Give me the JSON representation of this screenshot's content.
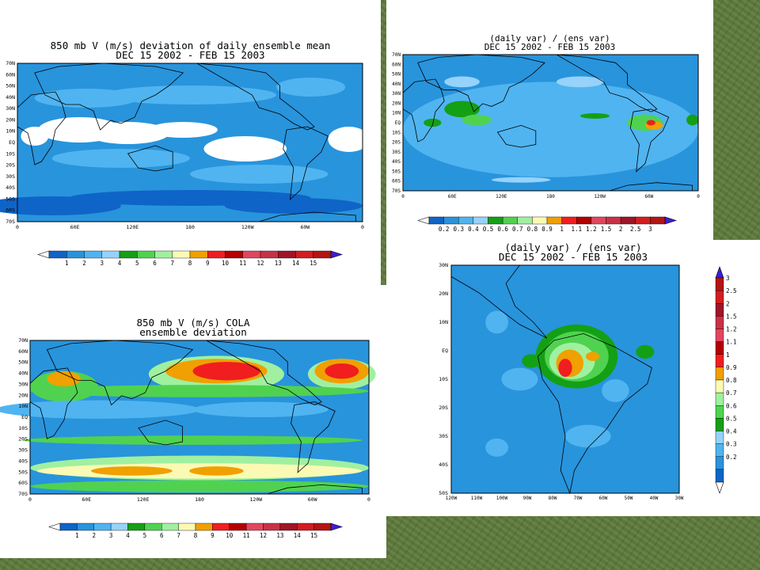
{
  "background": {
    "color": "#5b7838"
  },
  "panels": {
    "p1": {
      "title1": "850 mb V (m/s) deviation of daily ensemble mean",
      "title2": "DEC 15 2002 - FEB 15 2003"
    },
    "p2": {
      "title1": "(daily var) / (ens var)",
      "title2": "DEC 15 2002 - FEB 15 2003"
    },
    "p3": {
      "title1": "850 mb V (m/s) COLA",
      "title2": "ensemble deviation"
    },
    "p4": {
      "title1": "(daily var) / (ens var)",
      "title2": "DEC 15 2002 - FEB 15 2003"
    }
  },
  "global_lat_ticks": [
    "70N",
    "60N",
    "50N",
    "40N",
    "30N",
    "20N",
    "10N",
    "EQ",
    "10S",
    "20S",
    "30S",
    "40S",
    "50S",
    "60S",
    "70S"
  ],
  "global_lon_ticks": [
    "0",
    "60E",
    "120E",
    "180",
    "120W",
    "60W",
    "0"
  ],
  "regional_lat_ticks": [
    "30N",
    "20N",
    "10N",
    "EQ",
    "10S",
    "20S",
    "30S",
    "40S",
    "50S"
  ],
  "regional_lon_ticks": [
    "120W",
    "110W",
    "100W",
    "90W",
    "80W",
    "70W",
    "60W",
    "50W",
    "40W",
    "30W"
  ],
  "colorbar_wind": {
    "labels": [
      "1",
      "2",
      "3",
      "4",
      "5",
      "6",
      "7",
      "8",
      "9",
      "10",
      "11",
      "12",
      "13",
      "14",
      "15"
    ],
    "colors": [
      "#0f64c8",
      "#2894dc",
      "#50b4f0",
      "#96d2fa",
      "#14a014",
      "#50d250",
      "#a0f0a0",
      "#fafab4",
      "#f0a000",
      "#f01e1e",
      "#b40000",
      "#e14660",
      "#c83246",
      "#a01428",
      "#d21e1e",
      "#b41414"
    ]
  },
  "colorbar_ratio": {
    "labels": [
      "0.2",
      "0.3",
      "0.4",
      "0.5",
      "0.6",
      "0.7",
      "0.8",
      "0.9",
      "1",
      "1.1",
      "1.2",
      "1.5",
      "2",
      "2.5",
      "3"
    ],
    "colors": [
      "#0f64c8",
      "#2894dc",
      "#50b4f0",
      "#96d2fa",
      "#14a014",
      "#50d250",
      "#a0f0a0",
      "#fafab4",
      "#f0a000",
      "#f01e1e",
      "#b40000",
      "#e14660",
      "#c83246",
      "#a01428",
      "#d21e1e",
      "#b41414"
    ]
  }
}
